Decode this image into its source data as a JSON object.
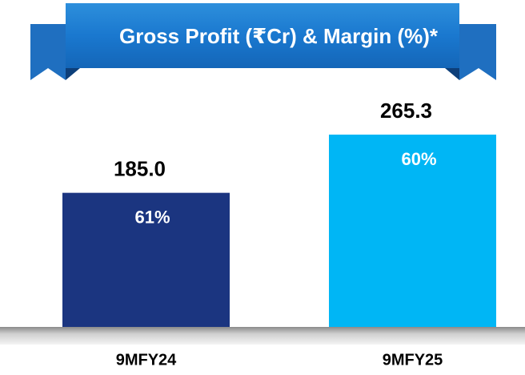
{
  "chart_data": {
    "type": "bar",
    "title": "Gross Profit (₹Cr) & Margin (%)*",
    "categories": [
      "9MFY24",
      "9MFY25"
    ],
    "values": [
      185.0,
      265.3
    ],
    "value_labels": [
      "185.0",
      "265.3"
    ],
    "margins": [
      61,
      60
    ],
    "margin_labels": [
      "61%",
      "60%"
    ],
    "colors": [
      "#1b3580",
      "#00b6f5"
    ]
  }
}
